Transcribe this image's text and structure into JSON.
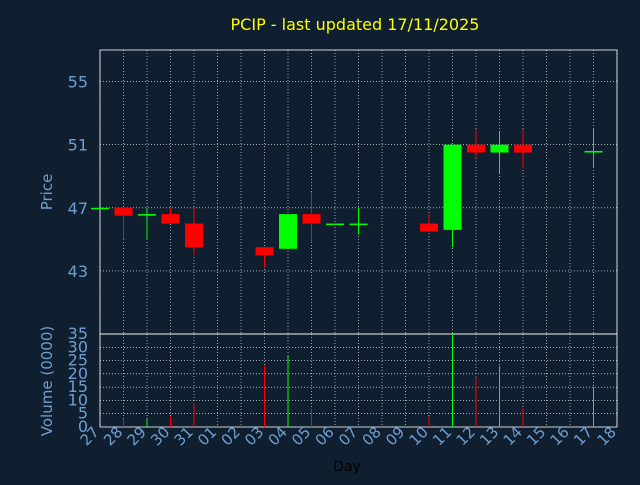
{
  "chart_data": {
    "type": "candlestick",
    "title": "PCIP - last updated 17/11/2025",
    "xlabel": "Day",
    "price_panel": {
      "ylabel": "Price",
      "ylim": [
        39,
        57
      ],
      "yticks": [
        43,
        47,
        51,
        55
      ],
      "grid": true
    },
    "volume_panel": {
      "ylabel": "Volume (0000)",
      "ylim": [
        0,
        35
      ],
      "yticks": [
        0,
        5,
        10,
        15,
        20,
        25,
        30,
        35
      ],
      "grid": true
    },
    "x_tick_labels": [
      "27",
      "28",
      "29",
      "30",
      "31",
      "01",
      "02",
      "03",
      "04",
      "05",
      "06",
      "07",
      "08",
      "09",
      "10",
      "11",
      "12",
      "13",
      "14",
      "15",
      "16",
      "17",
      "18"
    ],
    "candles": [
      {
        "day": "27",
        "open": 47.0,
        "high": 47.0,
        "low": 47.0,
        "close": 47.0,
        "volume": 0
      },
      {
        "day": "28",
        "open": 47.0,
        "high": 47.0,
        "low": 45.0,
        "close": 46.5,
        "volume": 3
      },
      {
        "day": "29",
        "open": 46.5,
        "high": 47.0,
        "low": 45.0,
        "close": 46.6,
        "volume": 3
      },
      {
        "day": "30",
        "open": 46.6,
        "high": 47.0,
        "low": 46.0,
        "close": 46.0,
        "volume": 4
      },
      {
        "day": "31",
        "open": 46.0,
        "high": 47.0,
        "low": 44.0,
        "close": 44.5,
        "volume": 9
      },
      {
        "day": "03",
        "open": 44.5,
        "high": 44.5,
        "low": 43.2,
        "close": 44.0,
        "volume": 23
      },
      {
        "day": "04",
        "open": 44.4,
        "high": 46.6,
        "low": 44.4,
        "close": 46.6,
        "volume": 27
      },
      {
        "day": "05",
        "open": 46.6,
        "high": 48.0,
        "low": 44.8,
        "close": 46.0,
        "volume": 7
      },
      {
        "day": "06",
        "open": 46.0,
        "high": 46.0,
        "low": 46.0,
        "close": 46.0,
        "volume": 0
      },
      {
        "day": "07",
        "open": 46.0,
        "high": 47.0,
        "low": 45.3,
        "close": 46.0,
        "volume": 0
      },
      {
        "day": "10",
        "open": 46.0,
        "high": 46.6,
        "low": 45.5,
        "close": 45.5,
        "volume": 4
      },
      {
        "day": "11",
        "open": 45.6,
        "high": 51.0,
        "low": 44.5,
        "close": 51.0,
        "volume": 35
      },
      {
        "day": "12",
        "open": 51.0,
        "high": 52.0,
        "low": 50.2,
        "close": 50.5,
        "volume": 19
      },
      {
        "day": "13",
        "open": 50.5,
        "high": 51.8,
        "low": 49.2,
        "close": 51.0,
        "volume": 23
      },
      {
        "day": "14",
        "open": 51.0,
        "high": 52.0,
        "low": 49.5,
        "close": 50.5,
        "volume": 7
      },
      {
        "day": "17",
        "open": 50.5,
        "high": 52.0,
        "low": 49.6,
        "close": 50.6,
        "volume": 15
      }
    ],
    "colors": {
      "background": "#0f1f30",
      "axis_text": "#6f9fcf",
      "title": "#ffff00",
      "xlabel": "#000000",
      "grid": "#ffffff",
      "up": "#00ff00",
      "down": "#ff0000"
    }
  }
}
